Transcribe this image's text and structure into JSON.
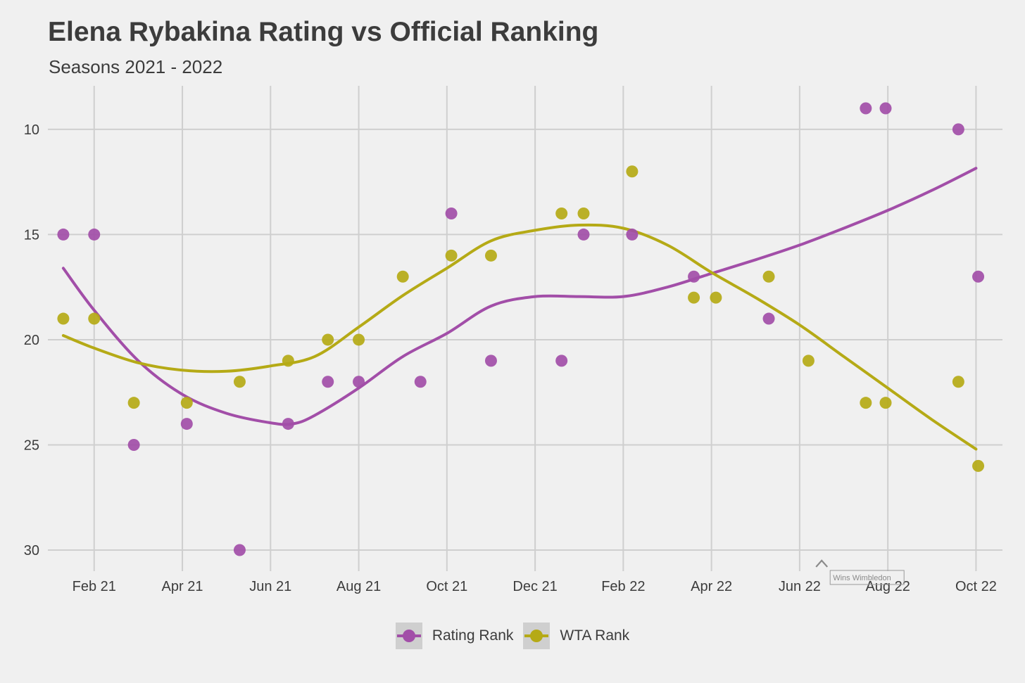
{
  "chart_data": {
    "type": "scatter",
    "title": "Elena Rybakina Rating vs Official Ranking",
    "subtitle": "Seasons 2021 - 2022",
    "xlabel": "",
    "ylabel": "",
    "x_unit": "months since Jan 1 2021",
    "xlim": [
      -0.05,
      21.6
    ],
    "ylim": [
      8,
      31
    ],
    "y_reversed": true,
    "x_ticks": [
      {
        "value": 1,
        "label": "Feb 21"
      },
      {
        "value": 3,
        "label": "Apr 21"
      },
      {
        "value": 5,
        "label": "Jun 21"
      },
      {
        "value": 7,
        "label": "Aug 21"
      },
      {
        "value": 9,
        "label": "Oct 21"
      },
      {
        "value": 11,
        "label": "Dec 21"
      },
      {
        "value": 13,
        "label": "Feb 22"
      },
      {
        "value": 15,
        "label": "Apr 22"
      },
      {
        "value": 17,
        "label": "Jun 22"
      },
      {
        "value": 19,
        "label": "Aug 22"
      },
      {
        "value": 21,
        "label": "Oct 22"
      }
    ],
    "y_ticks": [
      10,
      15,
      20,
      25,
      30
    ],
    "grid": true,
    "legend_position": "bottom",
    "series": [
      {
        "name": "Rating Rank",
        "color": "#a24ea8",
        "points": [
          [
            0.3,
            15
          ],
          [
            1.0,
            15
          ],
          [
            1.9,
            25
          ],
          [
            3.1,
            24
          ],
          [
            4.3,
            30
          ],
          [
            5.4,
            24
          ],
          [
            6.3,
            22
          ],
          [
            7.0,
            22
          ],
          [
            8.4,
            22
          ],
          [
            9.1,
            14
          ],
          [
            10.0,
            21
          ],
          [
            11.6,
            21
          ],
          [
            12.1,
            15
          ],
          [
            13.2,
            15
          ],
          [
            14.6,
            17
          ],
          [
            16.3,
            19
          ],
          [
            18.5,
            9
          ],
          [
            18.95,
            9
          ],
          [
            20.6,
            10
          ],
          [
            21.05,
            17
          ]
        ],
        "smooth": [
          [
            0.3,
            16.6
          ],
          [
            1.0,
            18.6
          ],
          [
            2.0,
            21.0
          ],
          [
            3.0,
            22.6
          ],
          [
            4.0,
            23.5
          ],
          [
            5.0,
            23.95
          ],
          [
            5.5,
            24.0
          ],
          [
            6.0,
            23.6
          ],
          [
            7.0,
            22.3
          ],
          [
            8.0,
            20.8
          ],
          [
            9.0,
            19.7
          ],
          [
            10.0,
            18.4
          ],
          [
            11.0,
            17.95
          ],
          [
            12.0,
            17.95
          ],
          [
            13.0,
            17.95
          ],
          [
            14.0,
            17.5
          ],
          [
            15.0,
            16.85
          ],
          [
            16.0,
            16.2
          ],
          [
            17.0,
            15.5
          ],
          [
            18.0,
            14.7
          ],
          [
            19.0,
            13.85
          ],
          [
            20.0,
            12.9
          ],
          [
            21.0,
            11.85
          ]
        ]
      },
      {
        "name": "WTA Rank",
        "color": "#b5aa16",
        "points": [
          [
            0.3,
            19
          ],
          [
            1.0,
            19
          ],
          [
            1.9,
            23
          ],
          [
            3.1,
            23
          ],
          [
            4.3,
            22
          ],
          [
            5.4,
            21
          ],
          [
            6.3,
            20
          ],
          [
            7.0,
            20
          ],
          [
            8.0,
            17
          ],
          [
            9.1,
            16
          ],
          [
            10.0,
            16
          ],
          [
            11.6,
            14
          ],
          [
            12.1,
            14
          ],
          [
            13.2,
            12
          ],
          [
            14.6,
            18
          ],
          [
            15.1,
            18
          ],
          [
            16.3,
            17
          ],
          [
            17.2,
            21
          ],
          [
            18.5,
            23
          ],
          [
            18.95,
            23
          ],
          [
            20.6,
            22
          ],
          [
            21.05,
            26
          ]
        ],
        "smooth": [
          [
            0.3,
            19.8
          ],
          [
            1.0,
            20.4
          ],
          [
            2.0,
            21.1
          ],
          [
            3.0,
            21.45
          ],
          [
            4.0,
            21.5
          ],
          [
            5.0,
            21.25
          ],
          [
            6.0,
            20.8
          ],
          [
            7.0,
            19.4
          ],
          [
            8.0,
            17.9
          ],
          [
            9.0,
            16.6
          ],
          [
            10.0,
            15.3
          ],
          [
            11.0,
            14.8
          ],
          [
            12.0,
            14.55
          ],
          [
            13.0,
            14.7
          ],
          [
            14.0,
            15.5
          ],
          [
            15.0,
            16.8
          ],
          [
            16.0,
            18.0
          ],
          [
            17.0,
            19.3
          ],
          [
            18.0,
            20.8
          ],
          [
            19.0,
            22.3
          ],
          [
            20.0,
            23.8
          ],
          [
            21.0,
            25.2
          ]
        ]
      }
    ],
    "annotations": [
      {
        "x": 17.5,
        "y": 30.5,
        "arrow": "^",
        "text": "Wins Wimbledon"
      }
    ]
  },
  "legend": {
    "items": [
      {
        "label": "Rating Rank",
        "color": "#a24ea8"
      },
      {
        "label": "WTA Rank",
        "color": "#b5aa16"
      }
    ]
  }
}
